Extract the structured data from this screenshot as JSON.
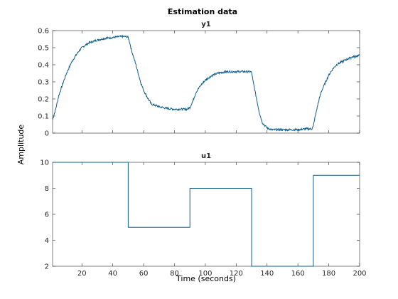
{
  "figure": {
    "title": "Estimation data",
    "ylabel": "Amplitude",
    "xlabel": "Time (seconds)",
    "colors": {
      "signal": "#0e5e8a",
      "axes": "#262626"
    }
  },
  "chart_data": [
    {
      "type": "line",
      "title": "y1",
      "xlabel": "Time (seconds)",
      "ylabel": "Amplitude",
      "xlim": [
        1,
        200
      ],
      "ylim": [
        0,
        0.6
      ],
      "y_ticks": [
        0,
        0.1,
        0.2,
        0.3,
        0.4,
        0.5,
        0.6
      ],
      "x_tick_labels_shown": false,
      "grid": false,
      "series": [
        {
          "x": [
            1,
            3,
            5,
            8,
            10,
            13,
            15,
            18,
            20,
            23,
            25,
            30,
            35,
            40,
            45,
            49,
            50,
            51,
            52,
            55,
            58,
            60,
            63,
            65,
            70,
            75,
            80,
            85,
            88,
            90,
            92,
            94,
            97,
            100,
            103,
            105,
            108,
            110,
            115,
            120,
            125,
            129,
            130,
            131,
            133,
            135,
            137,
            140,
            143,
            145,
            150,
            155,
            160,
            165,
            169,
            170,
            171,
            173,
            175,
            178,
            180,
            183,
            185,
            190,
            195,
            200
          ],
          "y": [
            0.08,
            0.14,
            0.22,
            0.3,
            0.35,
            0.41,
            0.44,
            0.48,
            0.5,
            0.52,
            0.53,
            0.545,
            0.555,
            0.56,
            0.565,
            0.565,
            0.56,
            0.53,
            0.49,
            0.4,
            0.3,
            0.25,
            0.2,
            0.17,
            0.155,
            0.145,
            0.14,
            0.14,
            0.14,
            0.15,
            0.19,
            0.24,
            0.28,
            0.31,
            0.33,
            0.34,
            0.35,
            0.355,
            0.36,
            0.36,
            0.36,
            0.36,
            0.355,
            0.3,
            0.21,
            0.12,
            0.06,
            0.03,
            0.02,
            0.02,
            0.02,
            0.02,
            0.02,
            0.025,
            0.025,
            0.04,
            0.09,
            0.17,
            0.24,
            0.3,
            0.34,
            0.38,
            0.4,
            0.425,
            0.445,
            0.455
          ]
        }
      ]
    },
    {
      "type": "line",
      "title": "u1",
      "xlabel": "Time (seconds)",
      "ylabel": "Amplitude",
      "xlim": [
        1,
        200
      ],
      "ylim": [
        2,
        10
      ],
      "x_ticks": [
        20,
        40,
        60,
        80,
        100,
        120,
        140,
        160,
        180,
        200
      ],
      "y_ticks": [
        2,
        4,
        6,
        8,
        10
      ],
      "grid": false,
      "series": [
        {
          "x": [
            1,
            50,
            50,
            90,
            90,
            130,
            130,
            170,
            170,
            200
          ],
          "y": [
            10,
            10,
            5,
            5,
            8,
            8,
            2,
            2,
            9,
            9
          ]
        }
      ]
    }
  ]
}
